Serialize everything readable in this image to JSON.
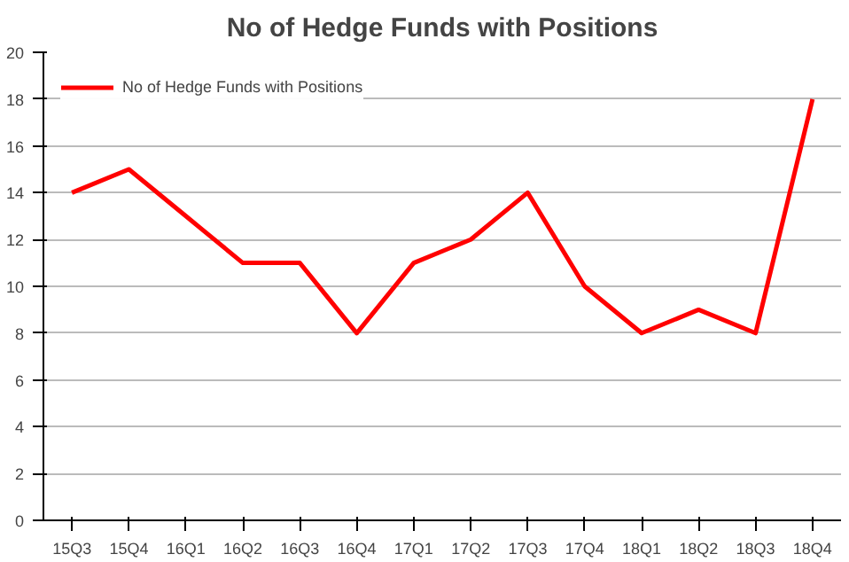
{
  "chart_data": {
    "type": "line",
    "title": "No of Hedge Funds with Positions",
    "categories": [
      "15Q3",
      "15Q4",
      "16Q1",
      "16Q2",
      "16Q3",
      "16Q4",
      "17Q1",
      "17Q2",
      "17Q3",
      "17Q4",
      "18Q1",
      "18Q2",
      "18Q3",
      "18Q4"
    ],
    "series": [
      {
        "name": "No of Hedge Funds with Positions",
        "color": "#ff0000",
        "values": [
          14,
          15,
          13,
          11,
          11,
          8,
          11,
          12,
          14,
          10,
          8,
          9,
          8,
          18
        ]
      }
    ],
    "ylim": [
      0,
      20
    ],
    "yticks": [
      0,
      2,
      4,
      6,
      8,
      10,
      12,
      14,
      16,
      18,
      20
    ],
    "grid": "y",
    "legend": "top left",
    "marker": "none",
    "line_style": "solid"
  }
}
